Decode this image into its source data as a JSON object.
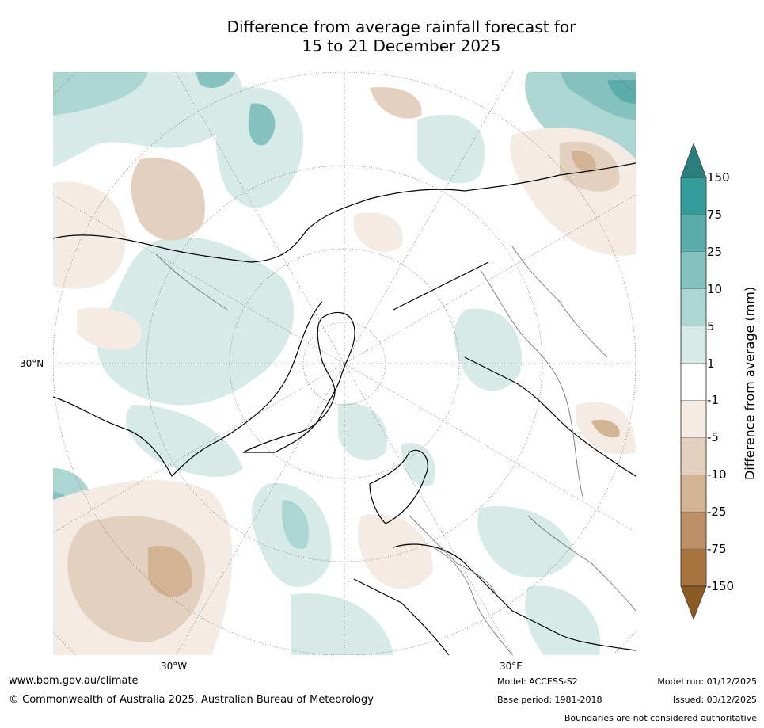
{
  "title": {
    "line1": "Difference from average rainfall forecast for",
    "line2": "15 to 21 December 2025"
  },
  "map": {
    "projection": "North Polar Stereographic",
    "lat_label": "30°N",
    "lon_labels": [
      "30°W",
      "30°E"
    ]
  },
  "colorbar": {
    "label": "Difference from average (mm)",
    "ticks": [
      "150",
      "75",
      "25",
      "10",
      "5",
      "1",
      "-1",
      "-5",
      "-10",
      "-25",
      "-75",
      "-150"
    ],
    "colors": [
      "#2a7f7e",
      "#319c99",
      "#5aadab",
      "#85c1be",
      "#add6d3",
      "#d6eae8",
      "#ffffff",
      "#f4ebe5",
      "#e3d0bf",
      "#d2b394",
      "#bd8f64",
      "#a7733f",
      "#8c5a23"
    ]
  },
  "footer": {
    "website": "www.bom.gov.au/climate",
    "copyright": "© Commonwealth of Australia 2025, Australian Bureau of Meteorology",
    "model": "Model: ACCESS-S2",
    "base_period": "Base period: 1981-2018",
    "model_run": "Model run: 01/12/2025",
    "issued": "Issued: 03/12/2025",
    "disclaimer": "Boundaries are not considered authoritative"
  }
}
